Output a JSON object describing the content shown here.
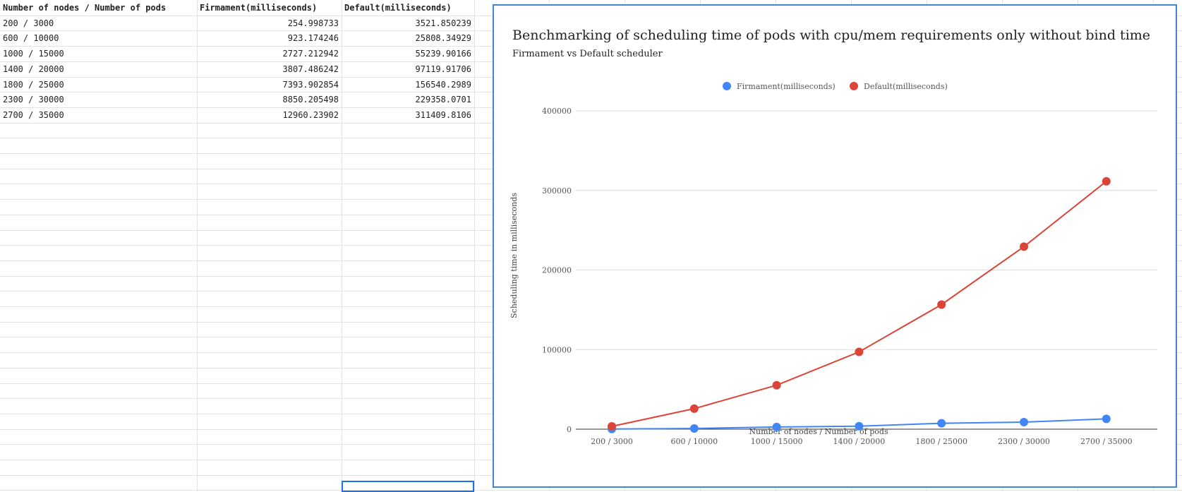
{
  "sheet": {
    "headers": [
      "Number of nodes / Number of pods",
      "Firmament(milliseconds)",
      "Default(milliseconds)"
    ],
    "rows": [
      [
        "200 / 3000",
        "254.998733",
        "3521.850239"
      ],
      [
        "600 / 10000",
        "923.174246",
        "25808.34929"
      ],
      [
        "1000 / 15000",
        "2727.212942",
        "55239.90166"
      ],
      [
        "1400 / 20000",
        "3807.486242",
        "97119.91706"
      ],
      [
        "1800 / 25000",
        "7393.902854",
        "156540.2989"
      ],
      [
        "2300 / 30000",
        "8850.205498",
        "229358.0701"
      ],
      [
        "2700 / 35000",
        "12960.23902",
        "311409.8106"
      ]
    ]
  },
  "chart_data": {
    "type": "line",
    "title": "Benchmarking of scheduling time of pods with cpu/mem requirements only without bind time",
    "subtitle": "Firmament vs Default scheduler",
    "xlabel": "Number of nodes / Number of pods",
    "ylabel": "Scheduling time in milliseconds",
    "categories": [
      "200 / 3000",
      "600 / 10000",
      "1000 / 15000",
      "1400 / 20000",
      "1800 / 25000",
      "2300 / 30000",
      "2700 / 35000"
    ],
    "series": [
      {
        "name": "Firmament(milliseconds)",
        "color": "#4285f4",
        "values": [
          254.998733,
          923.174246,
          2727.212942,
          3807.486242,
          7393.902854,
          8850.205498,
          12960.23902
        ]
      },
      {
        "name": "Default(milliseconds)",
        "color": "#db4437",
        "values": [
          3521.850239,
          25808.34929,
          55239.90166,
          97119.91706,
          156540.2989,
          229358.0701,
          311409.8106
        ]
      }
    ],
    "ylim": [
      0,
      400000
    ],
    "yticks": [
      "0",
      "100000",
      "200000",
      "300000",
      "400000"
    ],
    "grid": true,
    "legend_position": "top"
  }
}
